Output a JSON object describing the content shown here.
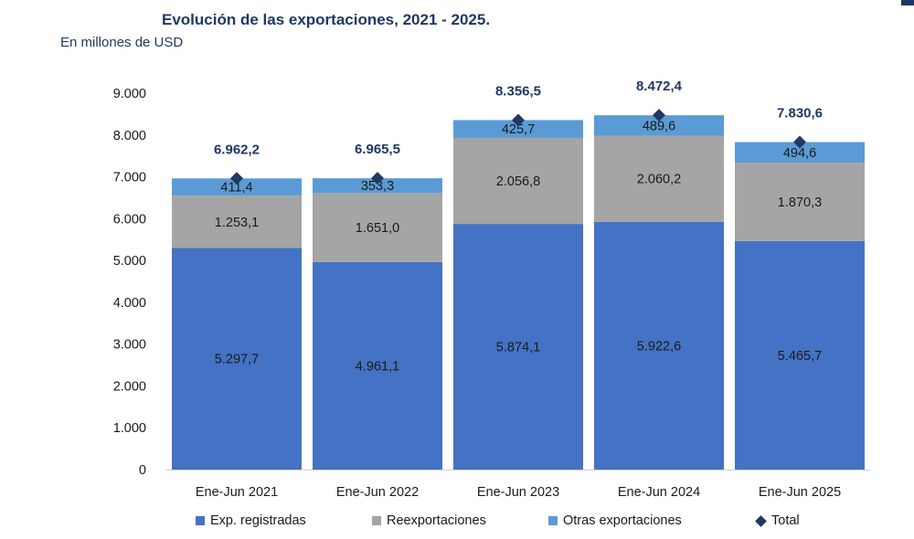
{
  "title": "Evolución de las exportaciones, 2021 - 2025.",
  "subtitle": "En millones de USD",
  "chart_data": {
    "type": "bar",
    "stacked": true,
    "title": "Evolución de las exportaciones, 2021 - 2025.",
    "subtitle": "En millones de USD",
    "categories": [
      "Ene-Jun 2021",
      "Ene-Jun 2022",
      "Ene-Jun 2023",
      "Ene-Jun 2024",
      "Ene-Jun 2025"
    ],
    "series": [
      {
        "name": "Exp. registradas",
        "color": "#4472c4",
        "values": [
          5297.7,
          4961.1,
          5874.1,
          5922.6,
          5465.7
        ],
        "labels": [
          "5.297,7",
          "4.961,1",
          "5.874,1",
          "5.922,6",
          "5.465,7"
        ]
      },
      {
        "name": "Reexportaciones",
        "color": "#a5a5a5",
        "values": [
          1253.1,
          1651.0,
          2056.8,
          2060.2,
          1870.3
        ],
        "labels": [
          "1.253,1",
          "1.651,0",
          "2.056,8",
          "2.060,2",
          "1.870,3"
        ]
      },
      {
        "name": "Otras exportaciones",
        "color": "#5b9bd5",
        "values": [
          411.4,
          353.3,
          425.7,
          489.6,
          494.6
        ],
        "labels": [
          "411,4",
          "353,3",
          "425,7",
          "489,6",
          "494,6"
        ]
      }
    ],
    "total": {
      "name": "Total",
      "color": "#1f3864",
      "values": [
        6962.2,
        6965.5,
        8356.5,
        8472.4,
        7830.6
      ],
      "labels": [
        "6.962,2",
        "6.965,5",
        "8.356,5",
        "8.472,4",
        "7.830,6"
      ]
    },
    "ylim": [
      0,
      9000
    ],
    "yticks": [
      0,
      1000,
      2000,
      3000,
      4000,
      5000,
      6000,
      7000,
      8000,
      9000
    ],
    "ytick_labels": [
      "0",
      "1.000",
      "2.000",
      "3.000",
      "4.000",
      "5.000",
      "6.000",
      "7.000",
      "8.000",
      "9.000"
    ],
    "xlabel": "",
    "ylabel": "",
    "grid": false,
    "legend_position": "bottom"
  }
}
